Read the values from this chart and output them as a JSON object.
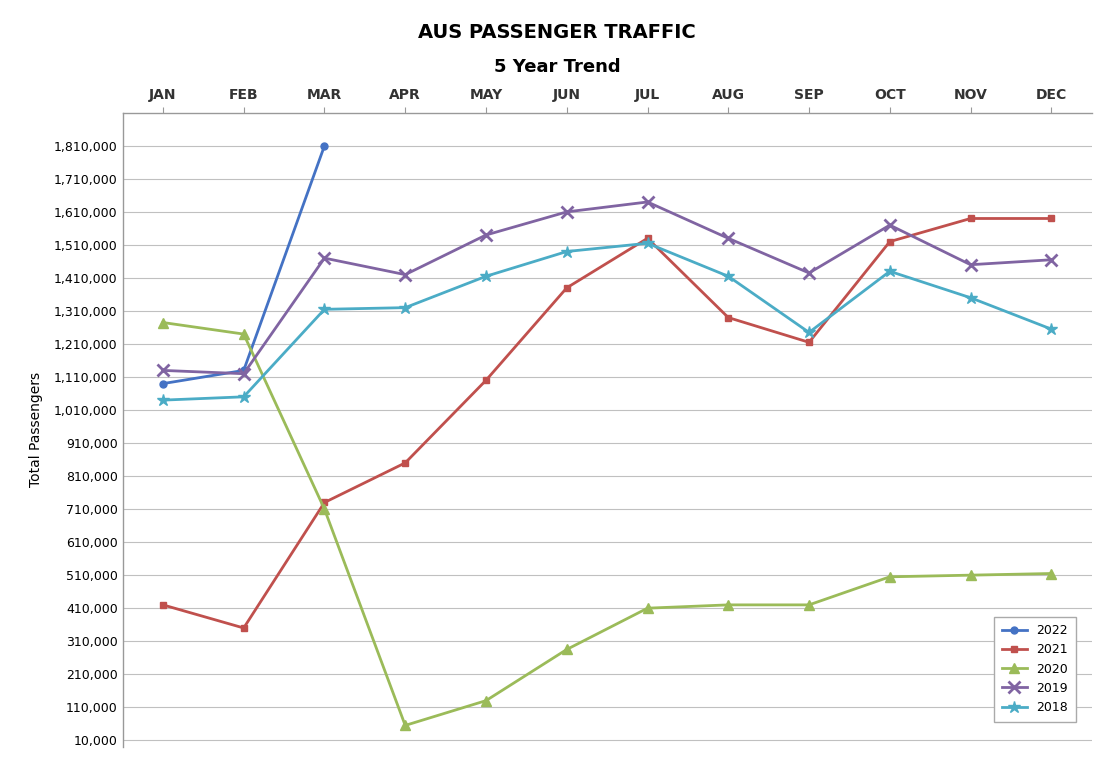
{
  "title": "AUS PASSENGER TRAFFIC",
  "subtitle": "5 Year Trend",
  "months": [
    "JAN",
    "FEB",
    "MAR",
    "APR",
    "MAY",
    "JUN",
    "JUL",
    "AUG",
    "SEP",
    "OCT",
    "NOV",
    "DEC"
  ],
  "series_order": [
    "2022",
    "2021",
    "2020",
    "2019",
    "2018"
  ],
  "series": {
    "2022": {
      "color": "#4472C4",
      "marker": "o",
      "markersize": 5,
      "linewidth": 2,
      "values": [
        1090000,
        1130000,
        1810000,
        null,
        null,
        null,
        null,
        null,
        null,
        null,
        null,
        null
      ]
    },
    "2021": {
      "color": "#C0504D",
      "marker": "s",
      "markersize": 5,
      "linewidth": 2,
      "values": [
        420000,
        350000,
        730000,
        850000,
        1100000,
        1380000,
        1530000,
        1290000,
        1215000,
        1520000,
        1590000,
        1590000
      ]
    },
    "2020": {
      "color": "#9BBB59",
      "marker": "^",
      "markersize": 7,
      "linewidth": 2,
      "values": [
        1275000,
        1240000,
        710000,
        55000,
        130000,
        285000,
        410000,
        420000,
        420000,
        505000,
        510000,
        515000
      ]
    },
    "2019": {
      "color": "#8064A2",
      "marker": "x",
      "markersize": 8,
      "markeredgewidth": 2,
      "linewidth": 2,
      "values": [
        1130000,
        1120000,
        1470000,
        1420000,
        1540000,
        1610000,
        1640000,
        1530000,
        1425000,
        1570000,
        1450000,
        1465000
      ]
    },
    "2018": {
      "color": "#4BACC6",
      "marker": "*",
      "markersize": 9,
      "linewidth": 2,
      "values": [
        1040000,
        1050000,
        1315000,
        1320000,
        1415000,
        1490000,
        1515000,
        1415000,
        1245000,
        1430000,
        1350000,
        1255000
      ]
    }
  },
  "ylabel": "Total Passengers",
  "ylim_min": -10000,
  "ylim_max": 1910000,
  "yticks": [
    10000,
    110000,
    210000,
    310000,
    410000,
    510000,
    610000,
    710000,
    810000,
    910000,
    1010000,
    1110000,
    1210000,
    1310000,
    1410000,
    1510000,
    1610000,
    1710000,
    1810000
  ],
  "background_color": "#FFFFFF",
  "grid_color": "#C0C0C0",
  "spine_color": "#999999",
  "title_fontsize": 14,
  "subtitle_fontsize": 13,
  "xlabel_fontsize": 10,
  "ylabel_fontsize": 10,
  "ytick_fontsize": 9,
  "legend_fontsize": 9
}
